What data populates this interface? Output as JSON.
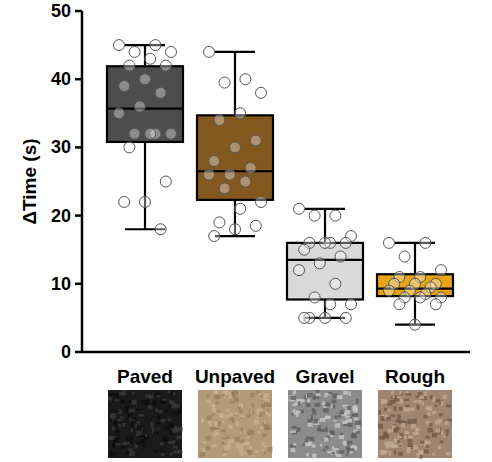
{
  "chart_data": {
    "type": "box",
    "y_label": "ΔTime (s)",
    "categories": [
      "Paved",
      "Unpaved",
      "Gravel",
      "Rough"
    ],
    "colors": [
      "#4d4d4d",
      "#83581f",
      "#d9d9d9",
      "#e8a413"
    ],
    "ylim": [
      0,
      50
    ],
    "yticks": [
      0,
      10,
      20,
      30,
      40,
      50
    ],
    "boxes": [
      {
        "min": 18,
        "q1": 30.8,
        "median": 35.7,
        "q3": 41.9,
        "max": 45
      },
      {
        "min": 17,
        "q1": 22.3,
        "median": 26.5,
        "q3": 34.7,
        "max": 44
      },
      {
        "min": 5,
        "q1": 7.7,
        "median": 13.5,
        "q3": 16,
        "max": 21
      },
      {
        "min": 4,
        "q1": 8.2,
        "median": 9.3,
        "q3": 11.4,
        "max": 16
      }
    ],
    "points": [
      [
        45,
        45,
        44,
        44,
        43,
        42,
        42,
        40,
        39,
        38,
        36,
        35,
        32,
        32,
        32,
        32,
        30,
        25,
        22,
        22,
        18
      ],
      [
        44,
        40,
        39.5,
        38,
        35,
        34,
        31,
        30,
        28,
        27,
        26,
        26,
        25,
        24,
        22,
        21,
        19,
        18.5,
        18,
        17
      ],
      [
        21,
        20,
        20,
        17,
        16,
        16,
        16,
        16,
        15,
        14,
        13,
        12,
        10,
        8,
        7,
        7,
        5,
        5,
        5,
        5
      ],
      [
        16,
        16,
        14,
        12,
        11,
        11,
        10,
        10,
        10,
        9.5,
        9,
        9,
        8.5,
        8,
        8,
        8,
        7,
        7,
        4
      ]
    ]
  }
}
